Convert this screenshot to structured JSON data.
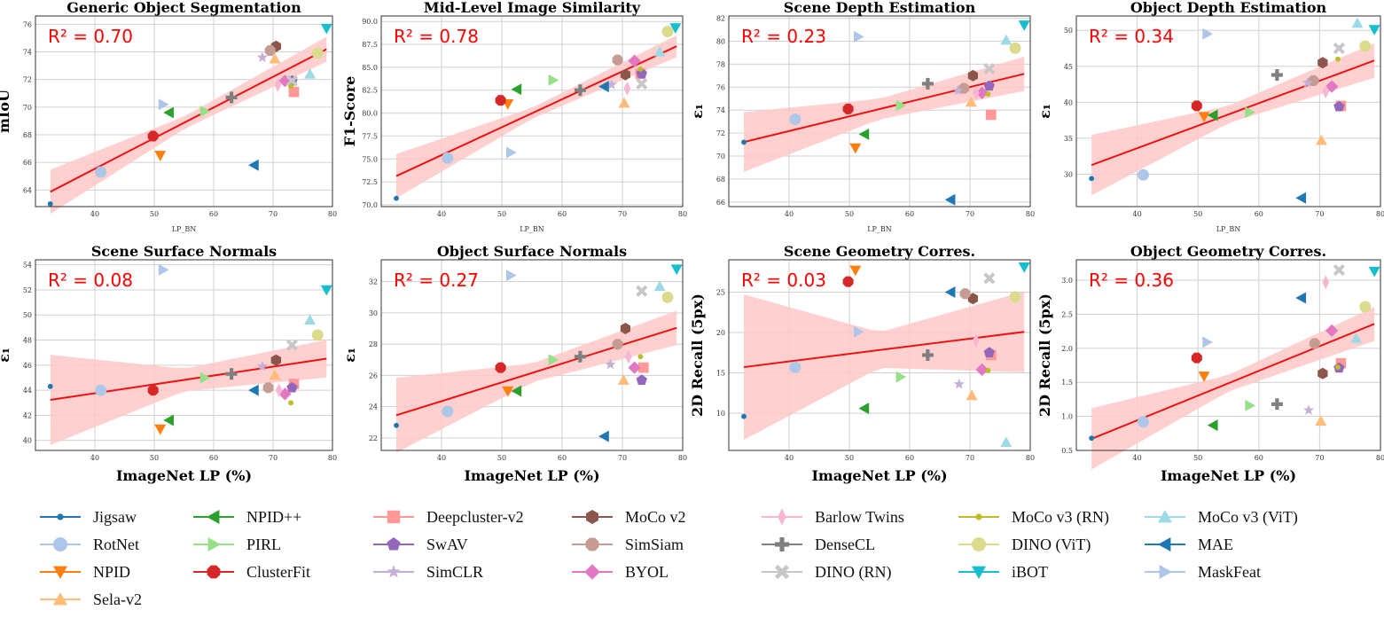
{
  "colors": {
    "fit_line": "#ee1111",
    "ci_band": "#ffc8c8",
    "r2_text": "#ff0000",
    "grid": "#d0d0d0"
  },
  "legend": [
    {
      "label": "Jigsaw",
      "color": "#1f77b4",
      "marker": "o-small"
    },
    {
      "label": "NPID++",
      "color": "#2ca02c",
      "marker": "tri-left"
    },
    {
      "label": "Deepcluster-v2",
      "color": "#ff9896",
      "marker": "square"
    },
    {
      "label": "MoCo v2",
      "color": "#8c564b",
      "marker": "hexagon"
    },
    {
      "label": "Barlow Twins",
      "color": "#f7b6d2",
      "marker": "thin-diamond"
    },
    {
      "label": "MoCo v3 (RN)",
      "color": "#bcbd22",
      "marker": "o-small"
    },
    {
      "label": "MoCo v3 (ViT)",
      "color": "#9edae5",
      "marker": "tri-up"
    },
    {
      "label": "RotNet",
      "color": "#aec7e8",
      "marker": "circle"
    },
    {
      "label": "PIRL",
      "color": "#98df8a",
      "marker": "tri-right"
    },
    {
      "label": "SwAV",
      "color": "#9467bd",
      "marker": "pentagon"
    },
    {
      "label": "SimSiam",
      "color": "#c49c94",
      "marker": "octagon"
    },
    {
      "label": "DenseCL",
      "color": "#7f7f7f",
      "marker": "plus"
    },
    {
      "label": "DINO (ViT)",
      "color": "#dbdb8d",
      "marker": "circle"
    },
    {
      "label": "MAE",
      "color": "#1f77b4",
      "marker": "tri-left"
    },
    {
      "label": "NPID",
      "color": "#ff7f0e",
      "marker": "tri-down"
    },
    {
      "label": "ClusterFit",
      "color": "#d62728",
      "marker": "octagon"
    },
    {
      "label": "SimCLR",
      "color": "#c5b0d5",
      "marker": "star"
    },
    {
      "label": "BYOL",
      "color": "#e377c2",
      "marker": "diamond"
    },
    {
      "label": "DINO (RN)",
      "color": "#c7c7c7",
      "marker": "x"
    },
    {
      "label": "iBOT",
      "color": "#17becf",
      "marker": "tri-down"
    },
    {
      "label": "MaskFeat",
      "color": "#aec7e8",
      "marker": "tri-right"
    },
    {
      "label": "Sela-v2",
      "color": "#ffbb78",
      "marker": "tri-up"
    }
  ],
  "chart_data": [
    {
      "type": "scatter",
      "title": "Generic Object Segmentation",
      "xlabel": "LP_BN",
      "ylabel": "mIoU",
      "r2": "R² = 0.70",
      "xlim": [
        30,
        80
      ],
      "ylim": [
        62.8,
        76.6
      ],
      "xticks": [
        "40",
        "50",
        "60",
        "70",
        "80"
      ],
      "yticks": [
        "64",
        "66",
        "68",
        "70",
        "72",
        "74",
        "76"
      ],
      "fit": {
        "slope": 0.2219,
        "intercept": 56.66,
        "band_lo": 1.6,
        "band_mid": 0.45,
        "band_hi": 0.9
      },
      "points": [
        [
          32.5,
          63.0
        ],
        [
          41.0,
          65.3
        ],
        [
          51.0,
          66.5
        ],
        [
          70.3,
          73.5
        ],
        [
          52.5,
          69.6
        ],
        [
          58.5,
          69.7
        ],
        [
          49.8,
          67.9
        ],
        [
          73.5,
          71.1
        ],
        [
          73.2,
          71.9
        ],
        [
          70.5,
          74.4
        ],
        [
          69.5,
          74.1
        ],
        [
          68.2,
          73.6
        ],
        [
          72.0,
          71.9
        ],
        [
          70.8,
          71.6
        ],
        [
          63.0,
          70.7
        ],
        [
          73.2,
          71.9
        ],
        [
          73.0,
          71.5
        ],
        [
          77.5,
          73.9
        ],
        [
          79.0,
          75.7
        ],
        [
          76.2,
          72.4
        ],
        [
          66.8,
          65.8
        ],
        [
          51.5,
          70.2
        ]
      ]
    },
    {
      "type": "scatter",
      "title": "Mid-Level Image Similarity",
      "xlabel": "LP_BN",
      "ylabel": "F1-Score",
      "r2": "R² = 0.78",
      "xlim": [
        30,
        80
      ],
      "ylim": [
        69.8,
        90.6
      ],
      "xticks": [
        "40",
        "50",
        "60",
        "70",
        "80"
      ],
      "yticks": [
        "70.0",
        "72.5",
        "75.0",
        "77.5",
        "80.0",
        "82.5",
        "85.0",
        "87.5",
        "90.0"
      ],
      "fit": {
        "slope": 0.3046,
        "intercept": 63.23,
        "band_lo": 2.4,
        "band_mid": 0.6,
        "band_hi": 1.2
      },
      "points": [
        [
          32.5,
          70.7
        ],
        [
          41.0,
          75.1
        ],
        [
          51.0,
          81.0
        ],
        [
          70.3,
          81.1
        ],
        [
          52.5,
          82.6
        ],
        [
          58.5,
          83.6
        ],
        [
          49.8,
          81.4
        ],
        [
          73.0,
          84.3
        ],
        [
          73.2,
          84.3
        ],
        [
          70.5,
          84.2
        ],
        [
          69.2,
          85.8
        ],
        [
          68.2,
          83.1
        ],
        [
          72.0,
          85.7
        ],
        [
          70.8,
          82.7
        ],
        [
          63.0,
          82.5
        ],
        [
          73.2,
          83.2
        ],
        [
          73.0,
          84.8
        ],
        [
          77.5,
          88.9
        ],
        [
          78.8,
          89.3
        ],
        [
          76.2,
          86.7
        ],
        [
          67.0,
          82.9
        ],
        [
          51.5,
          75.7
        ]
      ]
    },
    {
      "type": "scatter",
      "title": "Scene Depth Estimation",
      "xlabel": "LP_BN",
      "ylabel": "ε₁",
      "r2": "R² = 0.23",
      "xlim": [
        30,
        80
      ],
      "ylim": [
        65.6,
        82.2
      ],
      "xticks": [
        "40",
        "50",
        "60",
        "70",
        "80"
      ],
      "yticks": [
        "66",
        "68",
        "70",
        "72",
        "74",
        "76",
        "78",
        "80",
        "82"
      ],
      "fit": {
        "slope": 0.1277,
        "intercept": 67.07,
        "band_lo": 2.6,
        "band_mid": 0.9,
        "band_hi": 1.5
      },
      "points": [
        [
          32.5,
          71.2
        ],
        [
          41.0,
          73.2
        ],
        [
          51.0,
          70.7
        ],
        [
          70.2,
          74.7
        ],
        [
          52.5,
          71.9
        ],
        [
          58.5,
          74.4
        ],
        [
          49.8,
          74.1
        ],
        [
          73.5,
          73.6
        ],
        [
          73.2,
          76.1
        ],
        [
          70.5,
          77.0
        ],
        [
          69.0,
          75.9
        ],
        [
          68.0,
          75.7
        ],
        [
          72.0,
          75.5
        ],
        [
          71.0,
          75.5
        ],
        [
          63.0,
          76.3
        ],
        [
          73.2,
          77.6
        ],
        [
          73.0,
          75.4
        ],
        [
          77.5,
          79.4
        ],
        [
          79.0,
          81.4
        ],
        [
          76.0,
          80.1
        ],
        [
          66.8,
          66.2
        ],
        [
          51.5,
          80.4
        ]
      ]
    },
    {
      "type": "scatter",
      "title": "Object Depth Estimation",
      "xlabel": "LP_BN",
      "ylabel": "ε₁",
      "r2": "R² = 0.34",
      "xlim": [
        30,
        80
      ],
      "ylim": [
        25.5,
        52.0
      ],
      "xticks": [
        "40",
        "50",
        "60",
        "70",
        "80"
      ],
      "yticks": [
        "30",
        "35",
        "40",
        "45",
        "50"
      ],
      "fit": {
        "slope": 0.3128,
        "intercept": 21.1,
        "band_lo": 4.2,
        "band_mid": 1.2,
        "band_hi": 2.4
      },
      "points": [
        [
          32.5,
          29.4
        ],
        [
          41.0,
          29.9
        ],
        [
          51.0,
          38.0
        ],
        [
          70.3,
          34.7
        ],
        [
          52.5,
          38.2
        ],
        [
          58.5,
          38.6
        ],
        [
          49.8,
          39.5
        ],
        [
          73.5,
          39.5
        ],
        [
          73.2,
          39.4
        ],
        [
          70.5,
          45.5
        ],
        [
          69.0,
          43.0
        ],
        [
          68.0,
          42.7
        ],
        [
          72.0,
          42.2
        ],
        [
          71.0,
          41.5
        ],
        [
          63.0,
          43.8
        ],
        [
          73.2,
          47.5
        ],
        [
          73.0,
          46.0
        ],
        [
          77.5,
          47.8
        ],
        [
          79.0,
          50.1
        ],
        [
          76.2,
          51.0
        ],
        [
          67.0,
          26.7
        ],
        [
          51.5,
          49.5
        ]
      ]
    },
    {
      "type": "scatter",
      "title": "Scene Surface Normals",
      "xlabel": "ImageNet LP (%)",
      "ylabel": "ε₁",
      "r2": "R² = 0.08",
      "xlim": [
        30,
        80
      ],
      "ylim": [
        39.2,
        54.4
      ],
      "xticks": [
        "40",
        "50",
        "60",
        "70",
        "80"
      ],
      "yticks": [
        "40",
        "42",
        "44",
        "46",
        "48",
        "50",
        "52",
        "54"
      ],
      "fit": {
        "slope": 0.0707,
        "intercept": 40.93,
        "band_lo": 3.6,
        "band_mid": 0.9,
        "band_hi": 1.5
      },
      "points": [
        [
          32.5,
          44.3
        ],
        [
          41.0,
          44.0
        ],
        [
          51.0,
          40.9
        ],
        [
          70.3,
          45.2
        ],
        [
          52.5,
          41.6
        ],
        [
          58.5,
          45.0
        ],
        [
          49.8,
          44.0
        ],
        [
          73.5,
          44.5
        ],
        [
          73.2,
          44.2
        ],
        [
          70.5,
          46.4
        ],
        [
          69.2,
          44.2
        ],
        [
          68.2,
          45.9
        ],
        [
          72.0,
          43.7
        ],
        [
          71.0,
          44.0
        ],
        [
          63.0,
          45.3
        ],
        [
          73.2,
          47.6
        ],
        [
          73.0,
          43.0
        ],
        [
          77.5,
          48.4
        ],
        [
          79.0,
          52.0
        ],
        [
          76.2,
          49.6
        ],
        [
          66.8,
          44.0
        ],
        [
          51.5,
          53.6
        ]
      ]
    },
    {
      "type": "scatter",
      "title": "Object Surface Normals",
      "xlabel": "ImageNet LP (%)",
      "ylabel": "ε₁",
      "r2": "R² = 0.27",
      "xlim": [
        30,
        80
      ],
      "ylim": [
        21.2,
        33.4
      ],
      "xticks": [
        "40",
        "50",
        "60",
        "70",
        "80"
      ],
      "yticks": [
        "22",
        "24",
        "26",
        "28",
        "30",
        "32"
      ],
      "fit": {
        "slope": 0.1203,
        "intercept": 19.54,
        "band_lo": 2.4,
        "band_mid": 0.6,
        "band_hi": 1.1
      },
      "points": [
        [
          32.5,
          22.8
        ],
        [
          41.0,
          23.7
        ],
        [
          51.0,
          25.0
        ],
        [
          70.2,
          25.7
        ],
        [
          52.5,
          25.0
        ],
        [
          58.5,
          27.0
        ],
        [
          49.8,
          26.5
        ],
        [
          73.5,
          26.5
        ],
        [
          73.2,
          25.7
        ],
        [
          70.5,
          29.0
        ],
        [
          69.2,
          28.0
        ],
        [
          68.0,
          26.7
        ],
        [
          72.0,
          26.5
        ],
        [
          71.0,
          27.2
        ],
        [
          63.0,
          27.2
        ],
        [
          73.2,
          31.4
        ],
        [
          73.0,
          27.2
        ],
        [
          77.5,
          31.0
        ],
        [
          79.0,
          32.8
        ],
        [
          76.2,
          31.7
        ],
        [
          67.0,
          22.1
        ],
        [
          51.5,
          32.4
        ]
      ]
    },
    {
      "type": "scatter",
      "title": "Scene Geometry Corres.",
      "xlabel": "ImageNet LP (%)",
      "ylabel": "2D Recall (5px)",
      "r2": "R² = 0.03",
      "xlim": [
        30,
        80
      ],
      "ylim": [
        5.4,
        29.0
      ],
      "xticks": [
        "40",
        "50",
        "60",
        "70",
        "80"
      ],
      "yticks": [
        "10",
        "15",
        "20",
        "25"
      ],
      "fit": {
        "slope": 0.0939,
        "intercept": 12.66,
        "band_lo": 9.0,
        "band_mid": 2.2,
        "band_hi": 5.0
      },
      "points": [
        [
          32.5,
          9.6
        ],
        [
          41.0,
          15.7
        ],
        [
          51.0,
          27.7
        ],
        [
          70.3,
          12.2
        ],
        [
          52.5,
          10.6
        ],
        [
          58.5,
          14.5
        ],
        [
          49.8,
          26.3
        ],
        [
          73.5,
          17.2
        ],
        [
          73.2,
          17.5
        ],
        [
          70.5,
          24.2
        ],
        [
          69.2,
          24.8
        ],
        [
          68.2,
          13.6
        ],
        [
          72.0,
          15.4
        ],
        [
          71.0,
          19.0
        ],
        [
          63.0,
          17.2
        ],
        [
          73.2,
          26.7
        ],
        [
          73.0,
          15.3
        ],
        [
          77.5,
          24.4
        ],
        [
          79.0,
          28.1
        ],
        [
          76.0,
          6.4
        ],
        [
          66.8,
          25.0
        ],
        [
          51.5,
          20.1
        ]
      ]
    },
    {
      "type": "scatter",
      "title": "Object Geometry Corres.",
      "xlabel": "ImageNet LP (%)",
      "ylabel": "2D Recall (5px)",
      "r2": "R² = 0.36",
      "xlim": [
        30,
        80
      ],
      "ylim": [
        0.5,
        3.3
      ],
      "xticks": [
        "40",
        "50",
        "60",
        "70",
        "80"
      ],
      "yticks": [
        "0.5",
        "1.0",
        "1.5",
        "2.0",
        "2.5",
        "3.0"
      ],
      "fit": {
        "slope": 0.0363,
        "intercept": -0.51,
        "band_lo": 0.45,
        "band_mid": 0.12,
        "band_hi": 0.25
      },
      "points": [
        [
          32.5,
          0.68
        ],
        [
          41.0,
          0.92
        ],
        [
          51.0,
          1.59
        ],
        [
          70.2,
          0.93
        ],
        [
          52.5,
          0.87
        ],
        [
          58.5,
          1.16
        ],
        [
          49.8,
          1.86
        ],
        [
          73.5,
          1.78
        ],
        [
          73.2,
          1.71
        ],
        [
          70.5,
          1.63
        ],
        [
          69.2,
          2.07
        ],
        [
          68.2,
          1.09
        ],
        [
          72.0,
          2.26
        ],
        [
          71.0,
          2.97
        ],
        [
          63.0,
          1.18
        ],
        [
          73.2,
          3.15
        ],
        [
          73.0,
          1.72
        ],
        [
          77.5,
          2.61
        ],
        [
          79.0,
          3.13
        ],
        [
          76.0,
          2.15
        ],
        [
          67.0,
          2.74
        ],
        [
          51.5,
          2.09
        ]
      ]
    }
  ]
}
